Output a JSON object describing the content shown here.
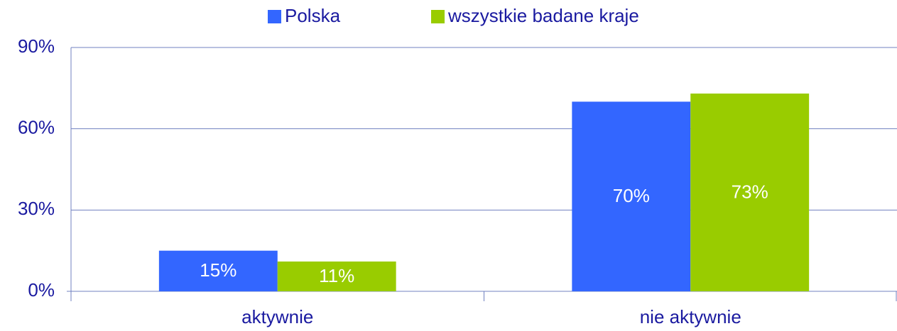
{
  "chart_data": {
    "type": "bar",
    "categories": [
      "aktywnie",
      "nie aktywnie"
    ],
    "series": [
      {
        "name": "Polska",
        "color": "#3366ff",
        "values": [
          15,
          70
        ],
        "value_labels": [
          "15%",
          "70%"
        ]
      },
      {
        "name": "wszystkie badane kraje",
        "color": "#99cc00",
        "values": [
          11,
          73
        ],
        "value_labels": [
          "11%",
          "73%"
        ]
      }
    ],
    "ylim": [
      0,
      90
    ],
    "yticks": [
      {
        "value": 0,
        "label": "0%"
      },
      {
        "value": 30,
        "label": "30%"
      },
      {
        "value": 60,
        "label": "60%"
      },
      {
        "value": 90,
        "label": "90%"
      }
    ],
    "grid": true,
    "legend": "top"
  }
}
